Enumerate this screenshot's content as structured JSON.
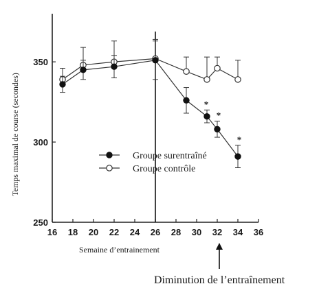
{
  "chart_data": {
    "type": "line",
    "title": "",
    "xlabel": "Semaine d’entrainement",
    "ylabel": "Temps maximal de course (secondes)",
    "xlim": [
      16,
      36
    ],
    "ylim": [
      250,
      380
    ],
    "x_ticks": [
      "16",
      "18",
      "20",
      "22",
      "24",
      "26",
      "28",
      "30",
      "32",
      "34",
      "36"
    ],
    "y_ticks": [
      "250",
      "300",
      "350"
    ],
    "grid": false,
    "legend_position": "center-left",
    "series": [
      {
        "name": "Groupe surentraîné",
        "marker": "filled-circle",
        "x": [
          17,
          19,
          22,
          26,
          29,
          31,
          32,
          34
        ],
        "y": [
          336,
          345,
          347,
          351,
          326,
          316,
          308,
          291
        ],
        "err": [
          5,
          6,
          7,
          12,
          8,
          4,
          5,
          7
        ],
        "significant": [
          false,
          false,
          false,
          false,
          false,
          true,
          true,
          true
        ]
      },
      {
        "name": "Groupe contrôle",
        "marker": "open-circle",
        "x": [
          17,
          19,
          22,
          26,
          29,
          31,
          32,
          34
        ],
        "y": [
          339,
          348,
          350,
          352,
          344,
          339,
          346,
          339
        ],
        "err": [
          7,
          11,
          13,
          12,
          9,
          14,
          7,
          12
        ]
      }
    ],
    "significance_marker": "*",
    "vertical_marker_x": 26,
    "annotation": {
      "text": "Diminution de l’entraînement",
      "points_to_x": 32
    }
  }
}
